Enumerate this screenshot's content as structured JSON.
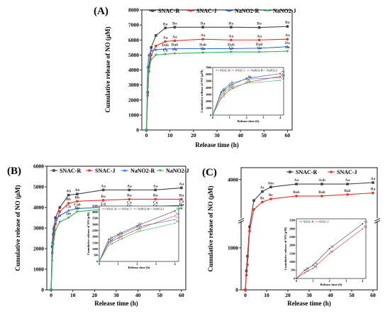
{
  "colors": {
    "SNAC-R": "#444444",
    "SNAC-J": "#e8332a",
    "NaNO2-R": "#2e6fd6",
    "NaNO2-J": "#2fb35a"
  },
  "chart_data": [
    {
      "panel": "(A)",
      "type": "line",
      "xlabel": "Release time (h)",
      "ylabel": "Cumulative release of NO (μM)",
      "xlim": [
        -2,
        62
      ],
      "ylim": [
        0,
        8000
      ],
      "xticks": [
        0,
        10,
        20,
        30,
        40,
        50,
        60
      ],
      "yticks": [
        0,
        1000,
        2000,
        3000,
        4000,
        5000,
        6000,
        7000,
        8000
      ],
      "x": [
        0,
        0.5,
        1,
        2,
        4,
        8,
        12,
        24,
        36,
        48,
        60
      ],
      "legend_position": "top",
      "series": [
        {
          "name": "SNAC-R",
          "color_key": "SNAC-R",
          "marker": "square",
          "values": [
            0,
            2500,
            4200,
            5500,
            6300,
            6800,
            6850,
            6850,
            6850,
            6830,
            6900
          ],
          "labels": [
            "",
            "",
            "",
            "",
            "",
            "Ba",
            "Ba",
            "Ba",
            "Ba",
            "Ba",
            "Ba"
          ]
        },
        {
          "name": "SNAC-J",
          "color_key": "SNAC-J",
          "marker": "circle",
          "values": [
            0,
            2300,
            3900,
            5000,
            5600,
            5900,
            5950,
            6050,
            6000,
            6000,
            6050
          ],
          "labels": [
            "",
            "",
            "",
            "",
            "",
            "Aa",
            "Aa",
            "Aa",
            "Aa",
            "Aa",
            "Aa"
          ]
        },
        {
          "name": "NaNO2-R",
          "color_key": "NaNO2-R",
          "marker": "triangle",
          "values": [
            0,
            4200,
            5000,
            5300,
            5350,
            5400,
            5420,
            5420,
            5420,
            5450,
            5550
          ],
          "labels": [
            "",
            "",
            "",
            "",
            "",
            "Dab",
            "Dab",
            "Dab",
            "Dab",
            "Dab",
            "Da"
          ]
        },
        {
          "name": "NaNO2-J",
          "color_key": "NaNO2-J",
          "marker": "triangle-down",
          "values": [
            0,
            2800,
            4000,
            4700,
            5000,
            5050,
            5100,
            5150,
            5200,
            5200,
            5250
          ],
          "labels": [
            "",
            "",
            "",
            "",
            "",
            "Ca",
            "Ca",
            "Ca",
            "Ca",
            "Ca",
            "Ca"
          ]
        }
      ],
      "inset": {
        "xlabel": "Release time (h)",
        "ylabel": "Cumulative release of NO (μM)",
        "xlim": [
          0,
          4.2
        ],
        "ylim": [
          0,
          7000
        ],
        "xticks": [
          0,
          1,
          2,
          3,
          4
        ],
        "yticks": [
          0,
          1000,
          2000,
          3000,
          4000,
          5000,
          6000,
          7000
        ],
        "x": [
          0,
          0.5,
          1,
          2,
          4
        ],
        "series": [
          {
            "name": "SNAC-R",
            "color_key": "SNAC-R",
            "values": [
              0,
              3300,
              4300,
              5400,
              6100
            ],
            "labels": [
              "",
              "Bd",
              "Bc",
              "Ab",
              "Aa"
            ]
          },
          {
            "name": "SNAC-J",
            "color_key": "SNAC-J",
            "values": [
              0,
              2500,
              3700,
              4800,
              5700
            ],
            "labels": [
              "",
              "Cf",
              "Bd",
              "Bc",
              "Ab"
            ]
          },
          {
            "name": "NaNO2-R",
            "color_key": "NaNO2-R",
            "values": [
              0,
              3500,
              4600,
              5300,
              5500
            ],
            "labels": [
              "",
              "Ad",
              "Ac",
              "Abc",
              "Db"
            ]
          },
          {
            "name": "NaNO2-J",
            "color_key": "NaNO2-J",
            "values": [
              0,
              2900,
              4000,
              4700,
              5100
            ],
            "labels": [
              "",
              "Ae",
              "Ac",
              "Cc",
              "Ca"
            ]
          }
        ]
      }
    },
    {
      "panel": "(B)",
      "type": "line",
      "xlabel": "Release time (h)",
      "ylabel": "Cumulative release of NO (μM)",
      "xlim": [
        -2,
        62
      ],
      "ylim": [
        0,
        6000
      ],
      "xticks": [
        0,
        10,
        20,
        30,
        40,
        50,
        60
      ],
      "yticks": [
        0,
        1000,
        2000,
        3000,
        4000,
        5000,
        6000
      ],
      "x": [
        0,
        0.5,
        1,
        2,
        4,
        8,
        12,
        24,
        36,
        48,
        60
      ],
      "legend_position": "top",
      "series": [
        {
          "name": "SNAC-R",
          "color_key": "SNAC-R",
          "marker": "square",
          "values": [
            0,
            2100,
            2700,
            3500,
            4000,
            4600,
            4650,
            4850,
            4850,
            4850,
            4950
          ],
          "labels": [
            "",
            "",
            "",
            "",
            "",
            "Ab",
            "Ab",
            "Aa",
            "Aa",
            "Aa",
            "Aa"
          ]
        },
        {
          "name": "SNAC-J",
          "color_key": "SNAC-J",
          "marker": "circle",
          "values": [
            0,
            1800,
            2500,
            3200,
            3800,
            4200,
            4300,
            4350,
            4400,
            4400,
            4400
          ],
          "labels": [
            "",
            "",
            "",
            "",
            "",
            "Bb",
            "Bb",
            "Ba",
            "Ba",
            "Ba",
            "Ba"
          ]
        },
        {
          "name": "NaNO2-R",
          "color_key": "NaNO2-R",
          "marker": "triangle",
          "values": [
            0,
            2300,
            3000,
            3400,
            3600,
            3850,
            3950,
            4000,
            4050,
            4050,
            4100
          ],
          "labels": [
            "",
            "",
            "",
            "",
            "",
            "Cb",
            "Cab",
            "Ca",
            "Ca",
            "Ca",
            "Ca"
          ]
        },
        {
          "name": "NaNO2-J",
          "color_key": "NaNO2-J",
          "marker": "triangle-down",
          "values": [
            0,
            1400,
            2200,
            2900,
            3300,
            3500,
            3800,
            3900,
            3900,
            3900,
            3950
          ],
          "labels": [
            "",
            "",
            "",
            "",
            "",
            "Db",
            "Da",
            "Ca",
            "Ca",
            "Ca",
            "Da"
          ]
        }
      ],
      "inset": {
        "xlabel": "Release time (h)",
        "ylabel": "Cumulative release of NO (μM)",
        "xlim": [
          0,
          4.2
        ],
        "ylim": [
          0,
          4500
        ],
        "xticks": [
          0,
          1,
          2,
          3,
          4
        ],
        "yticks": [
          0,
          500,
          1000,
          1500,
          2000,
          2500,
          3000,
          3500,
          4000,
          4500
        ],
        "x": [
          0,
          0.5,
          1,
          2,
          4
        ],
        "series": [
          {
            "name": "SNAC-R",
            "color_key": "SNAC-R",
            "values": [
              0,
              1800,
              2200,
              2900,
              4100
            ],
            "labels": [
              "",
              "Af",
              "Ae",
              "Ad",
              "Ac"
            ]
          },
          {
            "name": "SNAC-J",
            "color_key": "SNAC-J",
            "values": [
              0,
              1500,
              1900,
              2600,
              3700
            ],
            "labels": [
              "",
              "Bf",
              "Be",
              "Bd",
              "Bc"
            ]
          },
          {
            "name": "NaNO2-R",
            "color_key": "NaNO2-R",
            "values": [
              0,
              1600,
              2100,
              2800,
              3400
            ],
            "labels": [
              "",
              "Cf",
              "Cd",
              "Bc",
              "Cc"
            ]
          },
          {
            "name": "NaNO2-J",
            "color_key": "NaNO2-J",
            "values": [
              0,
              1300,
              1700,
              2400,
              3100
            ],
            "labels": [
              "",
              "Ce",
              "Cd",
              "Cc",
              "Dc"
            ]
          }
        ]
      }
    },
    {
      "panel": "(C)",
      "type": "line",
      "xlabel": "Release time (h)",
      "ylabel": "Cumulative release of NO (μM)",
      "xlim": [
        -2,
        62
      ],
      "axis_break": true,
      "lower_ylim": [
        0,
        1600
      ],
      "upper_ylim": [
        2700,
        4400
      ],
      "yticks": [
        0,
        1000,
        4000
      ],
      "xticks": [
        0,
        10,
        20,
        30,
        40,
        50,
        60
      ],
      "x": [
        0,
        0.5,
        1,
        2,
        4,
        8,
        12,
        24,
        36,
        48,
        60
      ],
      "legend_position": "top",
      "series": [
        {
          "name": "SNAC-R",
          "color_key": "SNAC-R",
          "marker": "square",
          "values": [
            0,
            450,
            800,
            1500,
            3300,
            3600,
            3750,
            3850,
            3850,
            3850,
            3900
          ],
          "labels": [
            "",
            "",
            "",
            "",
            "",
            "Ac",
            "Abc",
            "Aa",
            "Aab",
            "Aa",
            "Aa"
          ]
        },
        {
          "name": "SNAC-J",
          "color_key": "SNAC-J",
          "marker": "circle",
          "values": [
            0,
            350,
            600,
            1400,
            3000,
            3250,
            3350,
            3450,
            3450,
            3500,
            3550
          ],
          "labels": [
            "",
            "",
            "",
            "",
            "",
            "Bc",
            "Bc",
            "Bab",
            "Bab",
            "Bab",
            "Ba"
          ]
        }
      ],
      "inset": {
        "xlabel": "Release time (h)",
        "ylabel": "Cumulative release of NO (μM)",
        "xlim": [
          0,
          4.2
        ],
        "ylim": [
          0,
          3600
        ],
        "xticks": [
          0,
          1,
          2,
          3,
          4
        ],
        "yticks": [
          0,
          500,
          1000,
          1500,
          2000,
          2500,
          3000,
          3500
        ],
        "x": [
          0,
          0.5,
          1,
          2,
          4
        ],
        "series": [
          {
            "name": "SNAC-R",
            "color_key": "SNAC-R",
            "values": [
              0,
              500,
              800,
              1800,
              3300
            ],
            "labels": [
              "",
              "Ah",
              "Ag",
              "Ae",
              "Ad"
            ]
          },
          {
            "name": "SNAC-J",
            "color_key": "SNAC-J",
            "values": [
              0,
              350,
              600,
              1500,
              3000
            ],
            "labels": [
              "",
              "Bh",
              "Bg",
              "Bf",
              "Bd"
            ]
          }
        ]
      }
    }
  ]
}
